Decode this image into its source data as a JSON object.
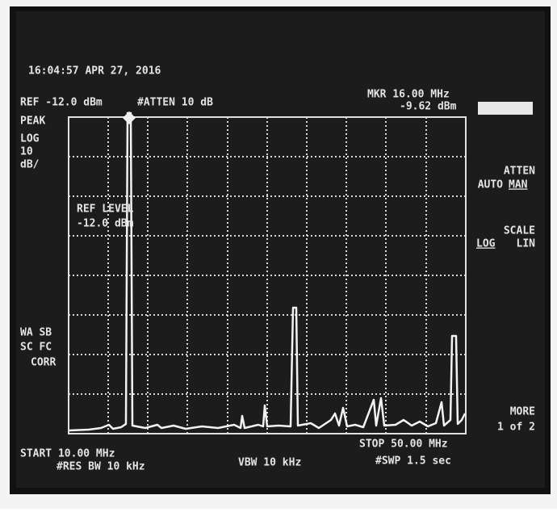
{
  "header": {
    "timestamp": "16:04:57 APR 27, 2016",
    "ref": "REF -12.0 dBm",
    "atten": "#ATTEN 10 dB",
    "marker_freq": "MKR 16.00 MHz",
    "marker_level": "-9.62 dBm"
  },
  "left_panel": {
    "detector": "PEAK",
    "scale": [
      "LOG",
      "10",
      "dB/"
    ],
    "flags": [
      "WA SB",
      "SC FC",
      "CORR"
    ]
  },
  "graticule": {
    "ref_level_label": "REF LEVEL",
    "ref_level_value": "-12.0 dBm"
  },
  "softkeys": {
    "atten_title": "ATTEN",
    "atten_options": [
      "AUTO",
      "MAN"
    ],
    "scale_title": "SCALE",
    "scale_options": [
      "LOG",
      "LIN"
    ],
    "more": "MORE",
    "page": "1 of 2"
  },
  "footer": {
    "start": "START 10.00 MHz",
    "res_bw": "#RES BW 10 kHz",
    "vbw": "VBW 10 kHz",
    "stop": "STOP 50.00 MHz",
    "sweep": "#SWP 1.5 sec"
  }
}
